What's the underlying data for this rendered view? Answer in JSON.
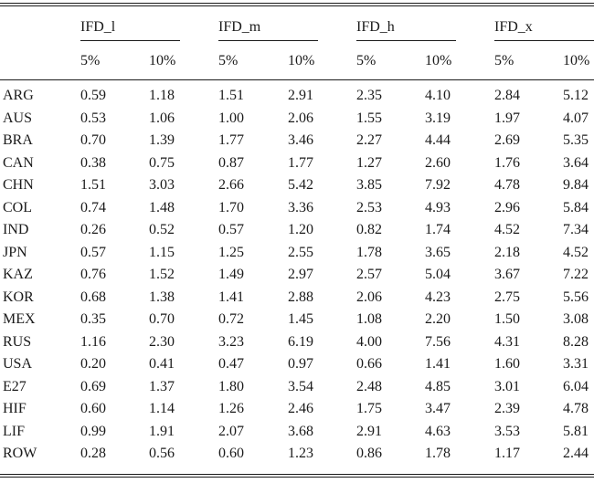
{
  "table": {
    "groups": [
      {
        "name": "IFD_l",
        "sub": [
          "5%",
          "10%"
        ]
      },
      {
        "name": "IFD_m",
        "sub": [
          "5%",
          "10%"
        ]
      },
      {
        "name": "IFD_h",
        "sub": [
          "5%",
          "10%"
        ]
      },
      {
        "name": "IFD_x",
        "sub": [
          "5%",
          "10%"
        ]
      }
    ],
    "rows": [
      {
        "country": "ARG",
        "values": [
          "0.59",
          "1.18",
          "1.51",
          "2.91",
          "2.35",
          "4.10",
          "2.84",
          "5.12"
        ]
      },
      {
        "country": "AUS",
        "values": [
          "0.53",
          "1.06",
          "1.00",
          "2.06",
          "1.55",
          "3.19",
          "1.97",
          "4.07"
        ]
      },
      {
        "country": "BRA",
        "values": [
          "0.70",
          "1.39",
          "1.77",
          "3.46",
          "2.27",
          "4.44",
          "2.69",
          "5.35"
        ]
      },
      {
        "country": "CAN",
        "values": [
          "0.38",
          "0.75",
          "0.87",
          "1.77",
          "1.27",
          "2.60",
          "1.76",
          "3.64"
        ]
      },
      {
        "country": "CHN",
        "values": [
          "1.51",
          "3.03",
          "2.66",
          "5.42",
          "3.85",
          "7.92",
          "4.78",
          "9.84"
        ]
      },
      {
        "country": "COL",
        "values": [
          "0.74",
          "1.48",
          "1.70",
          "3.36",
          "2.53",
          "4.93",
          "2.96",
          "5.84"
        ]
      },
      {
        "country": "IND",
        "values": [
          "0.26",
          "0.52",
          "0.57",
          "1.20",
          "0.82",
          "1.74",
          "4.52",
          "7.34"
        ]
      },
      {
        "country": "JPN",
        "values": [
          "0.57",
          "1.15",
          "1.25",
          "2.55",
          "1.78",
          "3.65",
          "2.18",
          "4.52"
        ]
      },
      {
        "country": "KAZ",
        "values": [
          "0.76",
          "1.52",
          "1.49",
          "2.97",
          "2.57",
          "5.04",
          "3.67",
          "7.22"
        ]
      },
      {
        "country": "KOR",
        "values": [
          "0.68",
          "1.38",
          "1.41",
          "2.88",
          "2.06",
          "4.23",
          "2.75",
          "5.56"
        ]
      },
      {
        "country": "MEX",
        "values": [
          "0.35",
          "0.70",
          "0.72",
          "1.45",
          "1.08",
          "2.20",
          "1.50",
          "3.08"
        ]
      },
      {
        "country": "RUS",
        "values": [
          "1.16",
          "2.30",
          "3.23",
          "6.19",
          "4.00",
          "7.56",
          "4.31",
          "8.28"
        ]
      },
      {
        "country": "USA",
        "values": [
          "0.20",
          "0.41",
          "0.47",
          "0.97",
          "0.66",
          "1.41",
          "1.60",
          "3.31"
        ]
      },
      {
        "country": "E27",
        "values": [
          "0.69",
          "1.37",
          "1.80",
          "3.54",
          "2.48",
          "4.85",
          "3.01",
          "6.04"
        ]
      },
      {
        "country": "HIF",
        "values": [
          "0.60",
          "1.14",
          "1.26",
          "2.46",
          "1.75",
          "3.47",
          "2.39",
          "4.78"
        ]
      },
      {
        "country": "LIF",
        "values": [
          "0.99",
          "1.91",
          "2.07",
          "3.68",
          "2.91",
          "4.63",
          "3.53",
          "5.81"
        ]
      },
      {
        "country": "ROW",
        "values": [
          "0.28",
          "0.56",
          "0.60",
          "1.23",
          "0.86",
          "1.78",
          "1.17",
          "2.44"
        ]
      }
    ]
  }
}
